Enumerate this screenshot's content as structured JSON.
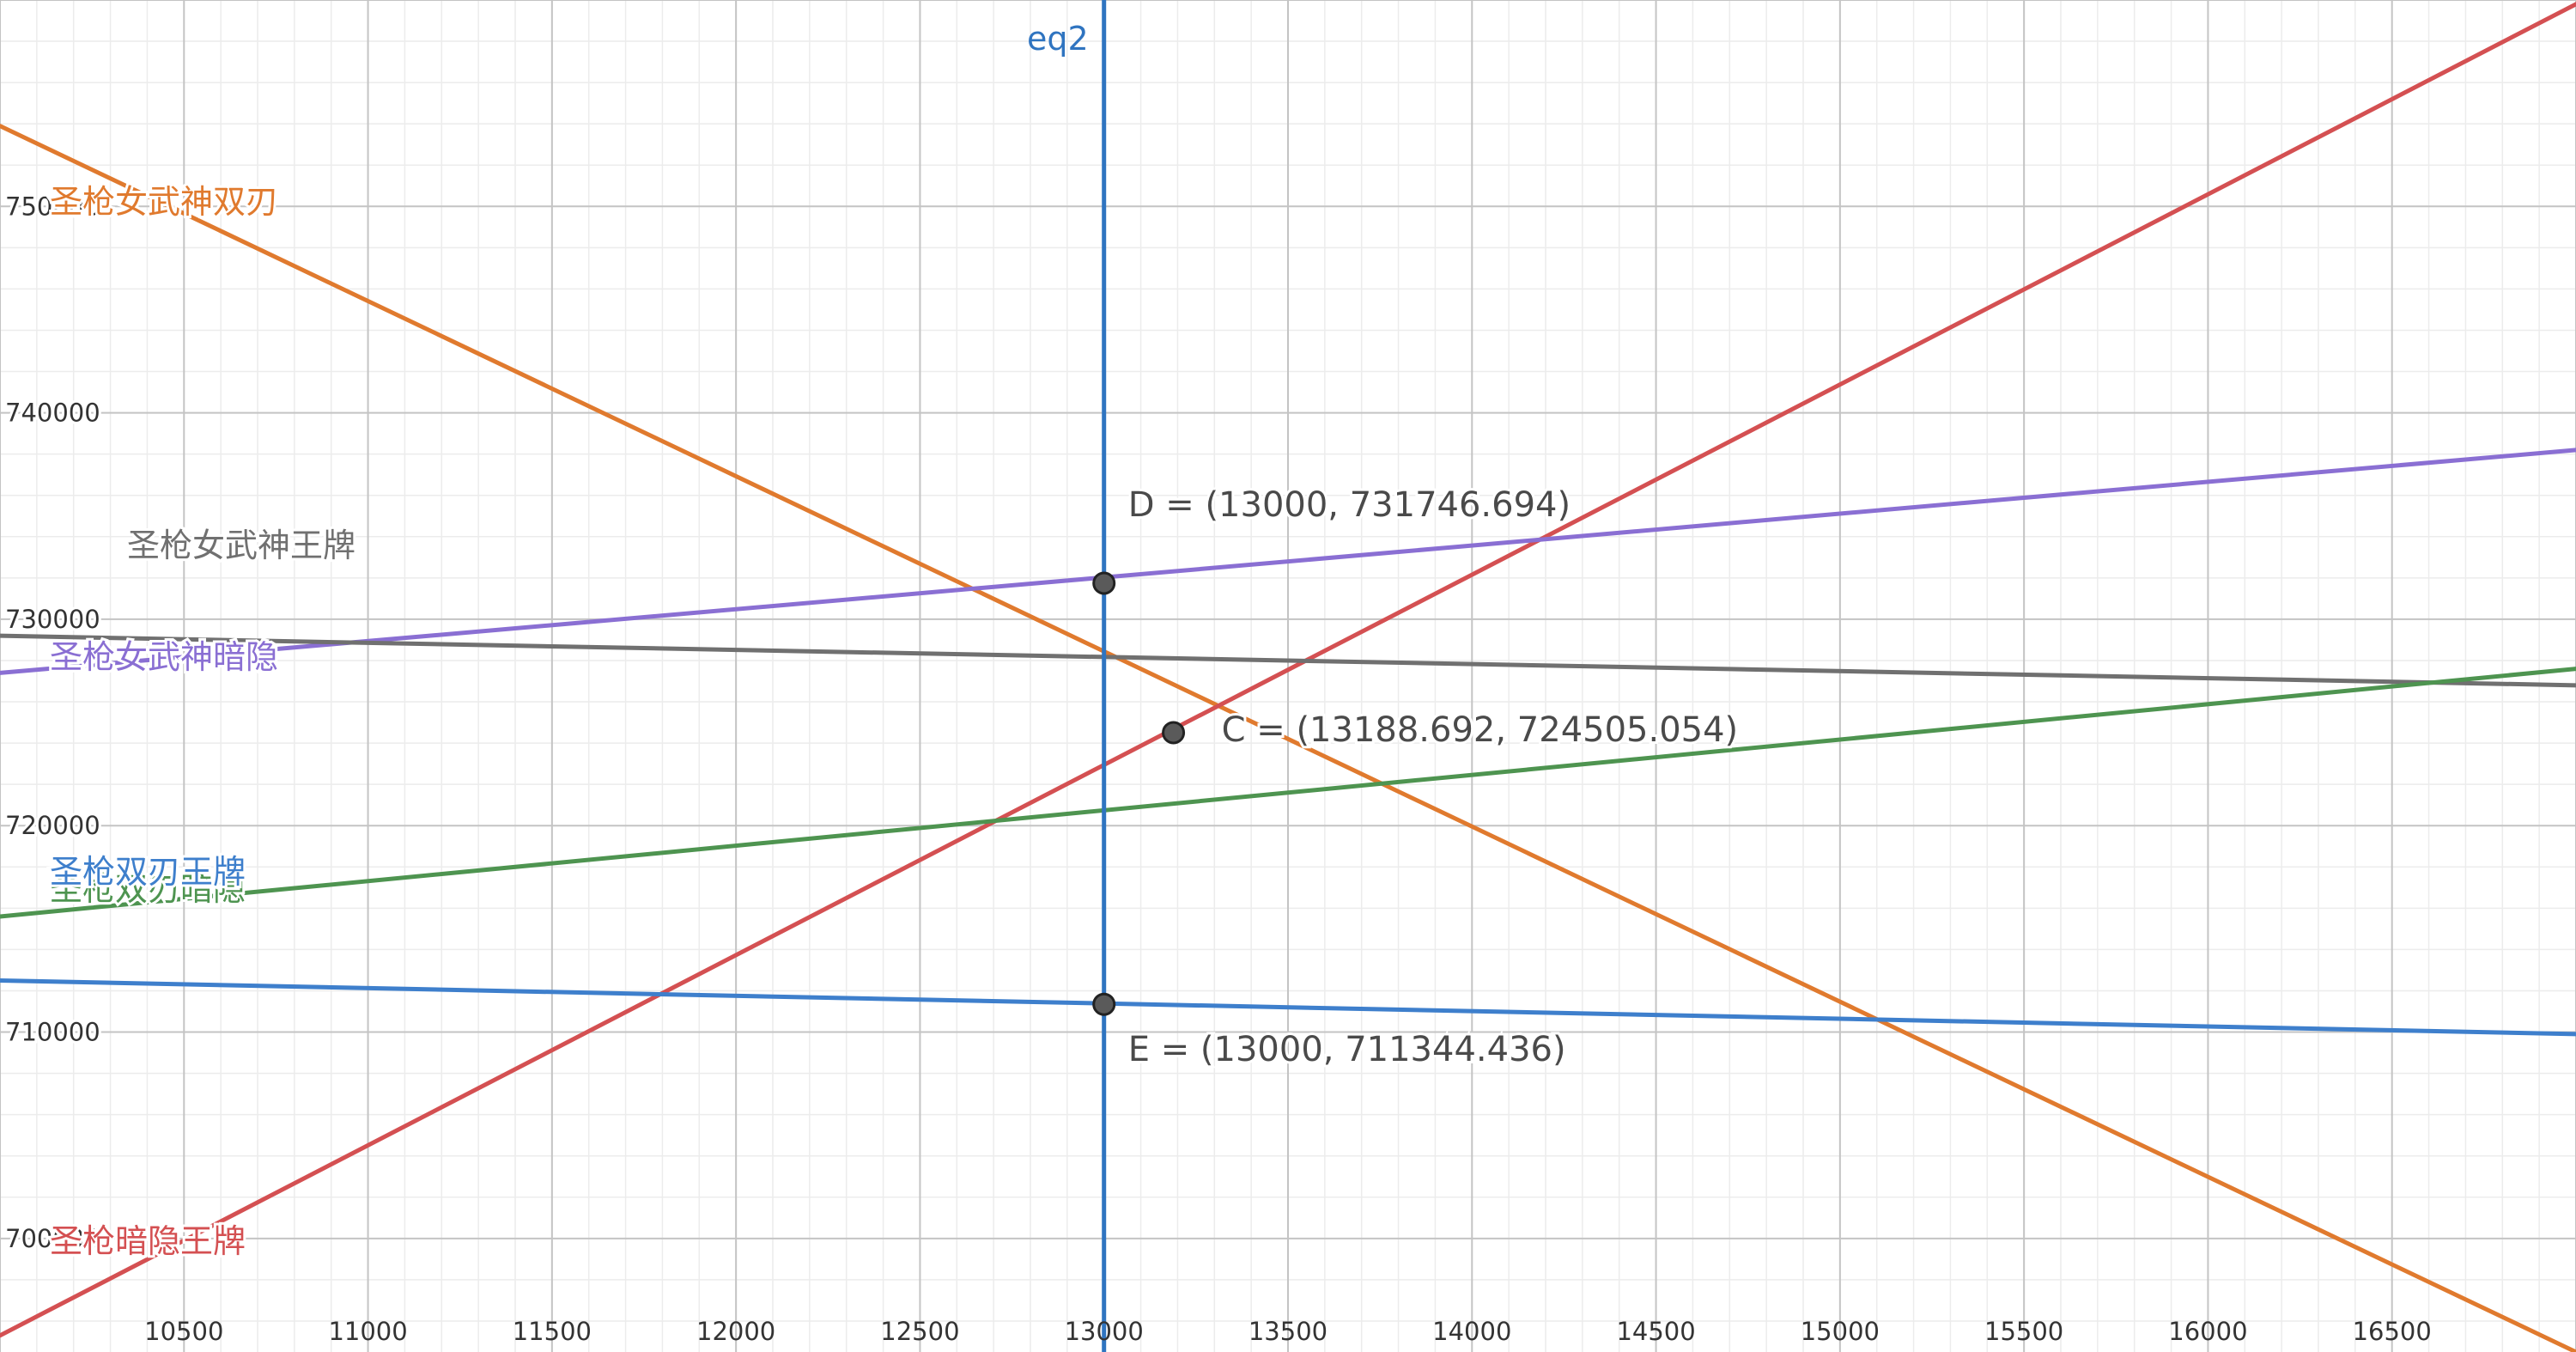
{
  "chart_data": {
    "type": "line",
    "xlim": [
      10000,
      17000
    ],
    "ylim": [
      694500,
      760000
    ],
    "grid": true,
    "x_ticks": [
      "10500",
      "11000",
      "11500",
      "12000",
      "12500",
      "13000",
      "13500",
      "14000",
      "14500",
      "15000",
      "15500",
      "16000",
      "16500"
    ],
    "y_ticks": [
      "700000",
      "710000",
      "720000",
      "730000",
      "740000",
      "750000"
    ],
    "series": [
      {
        "name": "圣枪女武神双刃",
        "color": "#e07a2e",
        "points": [
          [
            10000,
            753900
          ],
          [
            17000,
            694500
          ]
        ],
        "label_position": "top-left"
      },
      {
        "name": "圣枪暗隐王牌",
        "color": "#d45052",
        "points": [
          [
            10000,
            695300
          ],
          [
            17000,
            759800
          ]
        ],
        "label_position": "bottom-left"
      },
      {
        "name": "圣枪女武神暗隐",
        "color": "#8a6fd3",
        "points": [
          [
            10000,
            727400
          ],
          [
            17000,
            738200
          ]
        ],
        "label_position": "middle-left"
      },
      {
        "name": "圣枪女武神王牌",
        "color": "#707070",
        "points": [
          [
            10000,
            729200
          ],
          [
            17000,
            726800
          ]
        ],
        "label_position": "middle-left"
      },
      {
        "name": "圣枪双刃暗隐",
        "color": "#4e9450",
        "points": [
          [
            10000,
            715600
          ],
          [
            17000,
            727600
          ]
        ],
        "label_position": "lower-left"
      },
      {
        "name": "圣枪双刃王牌",
        "color": "#3e7fcc",
        "points": [
          [
            10000,
            712500
          ],
          [
            17000,
            709900
          ]
        ],
        "label_position": "lower-left"
      }
    ],
    "vertical_lines": [
      {
        "name": "eq2",
        "x": 13000,
        "color": "#2f74c0"
      }
    ],
    "points": [
      {
        "label": "D = (13000, 731746.694)",
        "x": 13000,
        "y": 731746.694
      },
      {
        "label": "C = (13188.692, 724505.054)",
        "x": 13188.692,
        "y": 724505.054
      },
      {
        "label": "E = (13000, 711344.436)",
        "x": 13000,
        "y": 711344.436
      }
    ]
  }
}
